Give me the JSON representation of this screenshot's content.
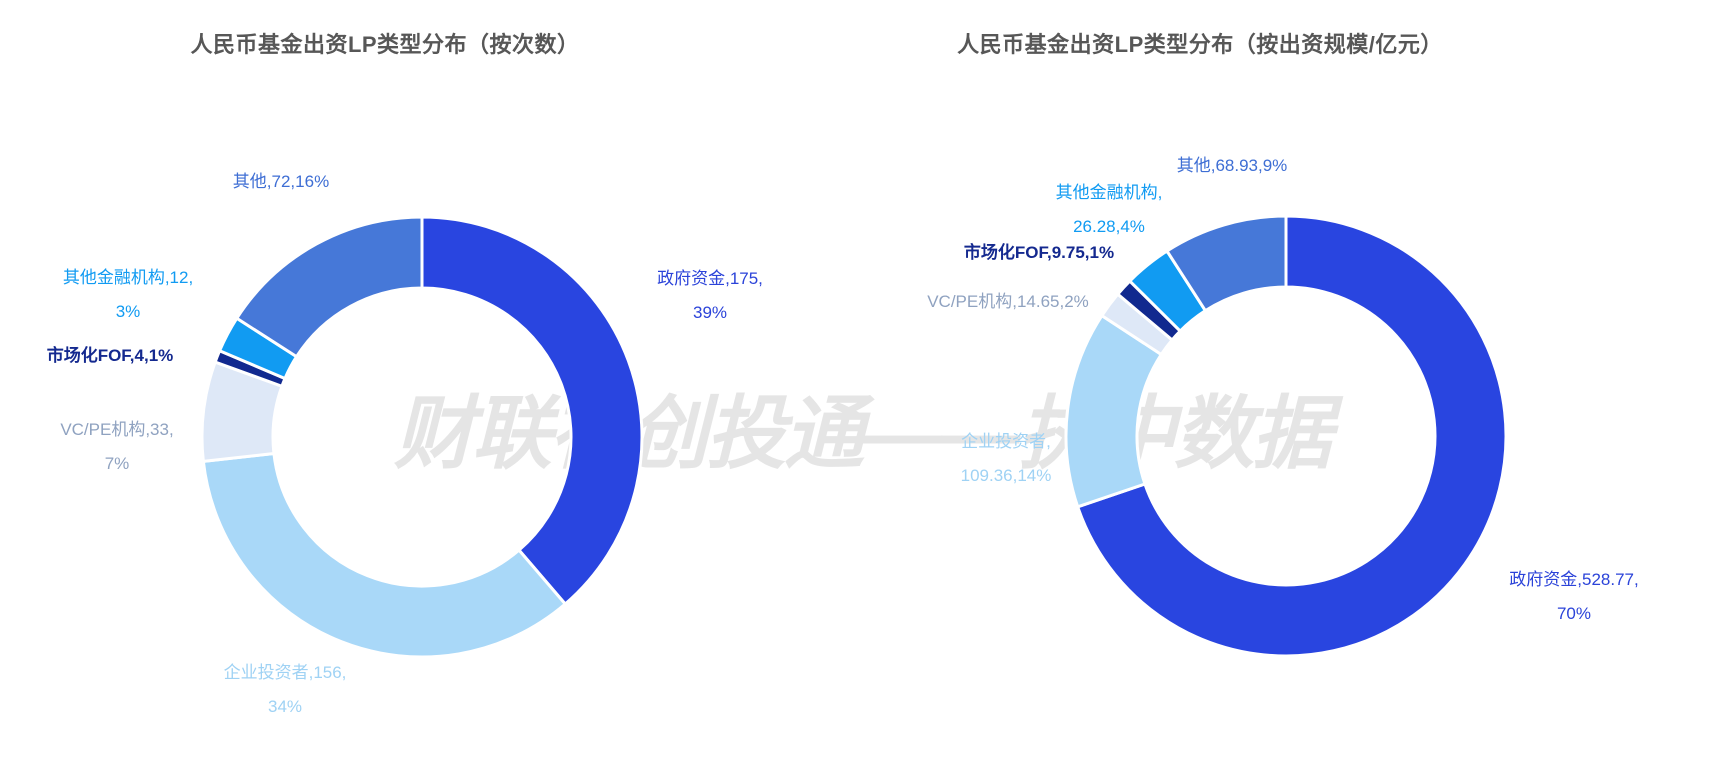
{
  "watermark": "财联社创投通——执中数据",
  "chart_data": [
    {
      "type": "pie",
      "subtype": "donut",
      "title": "人民币基金出资LP类型分布（按次数）",
      "legend": "none",
      "start_angle_deg": 0,
      "direction": "clockwise",
      "categories": [
        "政府资金",
        "企业投资者",
        "VC/PE机构",
        "市场化FOF",
        "其他金融机构",
        "其他"
      ],
      "ids": [
        "government-capital",
        "corporate-investor",
        "vc-pe-institution",
        "market-fof",
        "other-financial-institution",
        "other"
      ],
      "values": [
        175,
        156,
        33,
        4,
        12,
        72
      ],
      "percents": [
        "39%",
        "34%",
        "7%",
        "1%",
        "3%",
        "16%"
      ],
      "colors": [
        "#2945E0",
        "#A9D8F8",
        "#DEE8F7",
        "#11298F",
        "#119BF2",
        "#4678D8"
      ],
      "label_colors": [
        "#2B43D9",
        "#9FD2F4",
        "#8FA2C0",
        "#14298F",
        "#119BF2",
        "#3E6ED4"
      ],
      "labels": [
        "政府资金,175,\n39%",
        "企业投资者,156,\n34%",
        "VC/PE机构,33,\n7%",
        "市场化FOF,4,1%",
        "其他金融机构,12,\n3%",
        "其他,72,16%"
      ]
    },
    {
      "type": "pie",
      "subtype": "donut",
      "title": "人民币基金出资LP类型分布（按出资规模/亿元）",
      "legend": "none",
      "start_angle_deg": 0,
      "direction": "clockwise",
      "categories": [
        "政府资金",
        "企业投资者",
        "VC/PE机构",
        "市场化FOF",
        "其他金融机构",
        "其他"
      ],
      "ids": [
        "government-capital",
        "corporate-investor",
        "vc-pe-institution",
        "market-fof",
        "other-financial-institution",
        "other"
      ],
      "values": [
        528.77,
        109.36,
        14.65,
        9.75,
        26.28,
        68.93
      ],
      "percents": [
        "70%",
        "14%",
        "2%",
        "1%",
        "4%",
        "9%"
      ],
      "colors": [
        "#2945E0",
        "#A9D8F8",
        "#DEE8F7",
        "#11298F",
        "#119BF2",
        "#4678D8"
      ],
      "label_colors": [
        "#2B43D9",
        "#9FD2F4",
        "#8FA2C0",
        "#14298F",
        "#119BF2",
        "#3E6ED4"
      ],
      "labels": [
        "政府资金,528.77,\n70%",
        "企业投资者,\n109.36,14%",
        "VC/PE机构,14.65,2%",
        "市场化FOF,9.75,1%",
        "其他金融机构,\n26.28,4%",
        "其他,68.93,9%"
      ]
    }
  ]
}
